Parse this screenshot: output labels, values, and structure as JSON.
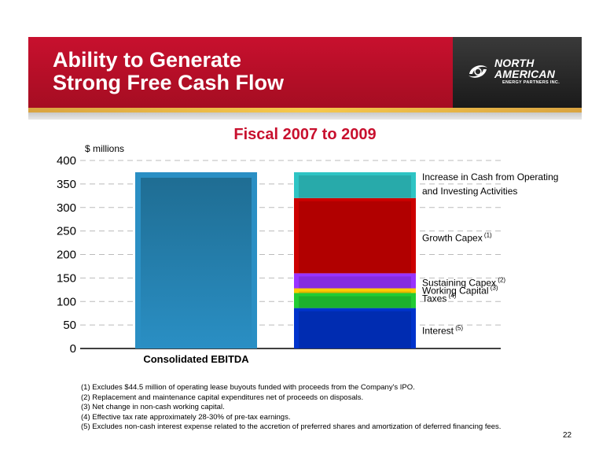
{
  "header": {
    "title_line1": "Ability to Generate",
    "title_line2": "Strong Free Cash Flow",
    "logo_line1": "NORTH",
    "logo_line2": "AMERICAN",
    "logo_sub": "ENERGY PARTNERS INC."
  },
  "colors": {
    "banner_red": "#c8102e",
    "banner_dark": "#2a2a2a",
    "gold": "#f5c84c",
    "ebitda_blue": "#2a8fc4",
    "cash_teal": "#2ec4c4",
    "growth_red": "#cc0000",
    "sustaining_purple": "#9933ff",
    "working_yellow": "#ffcc00",
    "taxes_green": "#22cc33",
    "interest_blue": "#0033cc"
  },
  "chart_data": {
    "type": "bar",
    "title": "Fiscal 2007 to 2009",
    "ylabel": "$ millions",
    "ylim": [
      0,
      400
    ],
    "yticks": [
      0,
      50,
      100,
      150,
      200,
      250,
      300,
      350,
      400
    ],
    "grid": "dashed horizontal",
    "categories": [
      "Consolidated EBITDA",
      ""
    ],
    "ebitda": {
      "label": "Consolidated EBITDA",
      "value": 375
    },
    "stack": [
      {
        "name": "Interest",
        "sup": "(5)",
        "bottom": 0,
        "top": 86,
        "color": "#0033cc"
      },
      {
        "name": "Taxes",
        "sup": "(4)",
        "bottom": 86,
        "top": 118,
        "color": "#22cc33"
      },
      {
        "name": "Working Capital",
        "sup": "(3)",
        "bottom": 118,
        "top": 128,
        "color": "#ffcc00"
      },
      {
        "name": "Sustaining Capex",
        "sup": "(2)",
        "bottom": 128,
        "top": 160,
        "color": "#9933ff"
      },
      {
        "name": "Growth Capex",
        "sup": "(1)",
        "bottom": 160,
        "top": 320,
        "color": "#cc0000"
      },
      {
        "name": "Increase in Cash from Operating and Investing Activities",
        "sup": "",
        "bottom": 320,
        "top": 375,
        "color": "#2ec4c4"
      }
    ],
    "annotations": [
      {
        "text1": "Increase in Cash from Operating",
        "text2": "and Investing Activities",
        "sup": "",
        "y": 365
      },
      {
        "text1": "Growth Capex",
        "sup": "(1)",
        "y": 235
      },
      {
        "text1": "Sustaining Capex",
        "sup": "(2)",
        "y": 140
      },
      {
        "text1": "Working Capital",
        "sup": "(3)",
        "y": 123
      },
      {
        "text1": "Taxes",
        "sup": "(4)",
        "y": 106
      },
      {
        "text1": "Interest",
        "sup": "(5)",
        "y": 38
      }
    ]
  },
  "footnotes": [
    "(1) Excludes $44.5 million of operating lease buyouts funded with proceeds from the Company's IPO.",
    "(2) Replacement and maintenance capital expenditures net of proceeds on disposals.",
    "(3) Net change in non-cash working capital.",
    "(4) Effective tax rate approximately 28-30% of pre-tax earnings.",
    "(5) Excludes non-cash interest expense related to the accretion of preferred shares and amortization of deferred financing fees."
  ],
  "page_number": "22"
}
